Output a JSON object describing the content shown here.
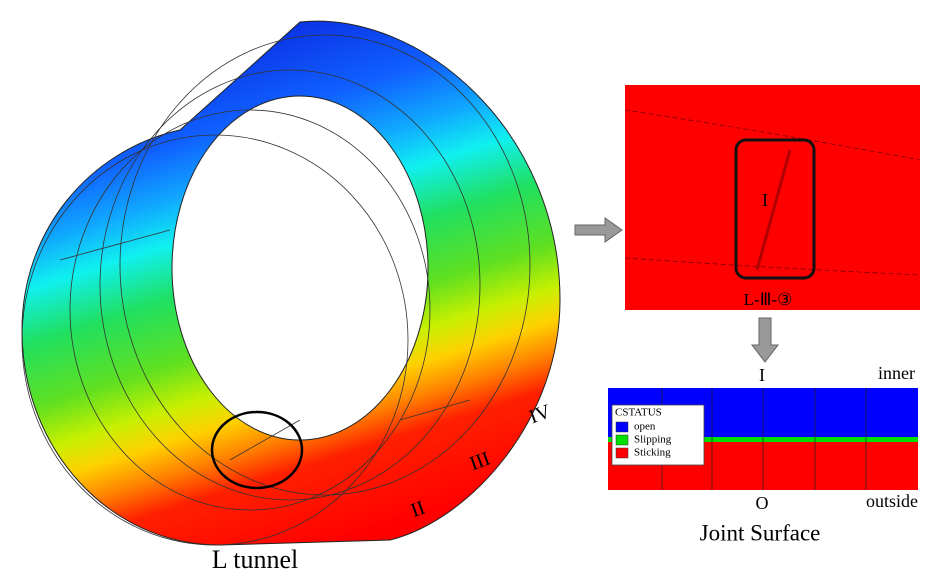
{
  "tunnel": {
    "label": "L tunnel",
    "rings": [
      "II",
      "III",
      "IV"
    ]
  },
  "detail": {
    "marker": "I",
    "label": "L-Ⅲ-③"
  },
  "joint_surface": {
    "top_marker": "I",
    "inner": "inner",
    "bottom_marker": "O",
    "outside": "outside",
    "caption": "Joint Surface",
    "legend": {
      "title": "CSTATUS",
      "items": [
        {
          "label": "open",
          "color": "#0000ff"
        },
        {
          "label": "Slipping",
          "color": "#00e000"
        },
        {
          "label": "Sticking",
          "color": "#ff0000"
        }
      ]
    }
  }
}
